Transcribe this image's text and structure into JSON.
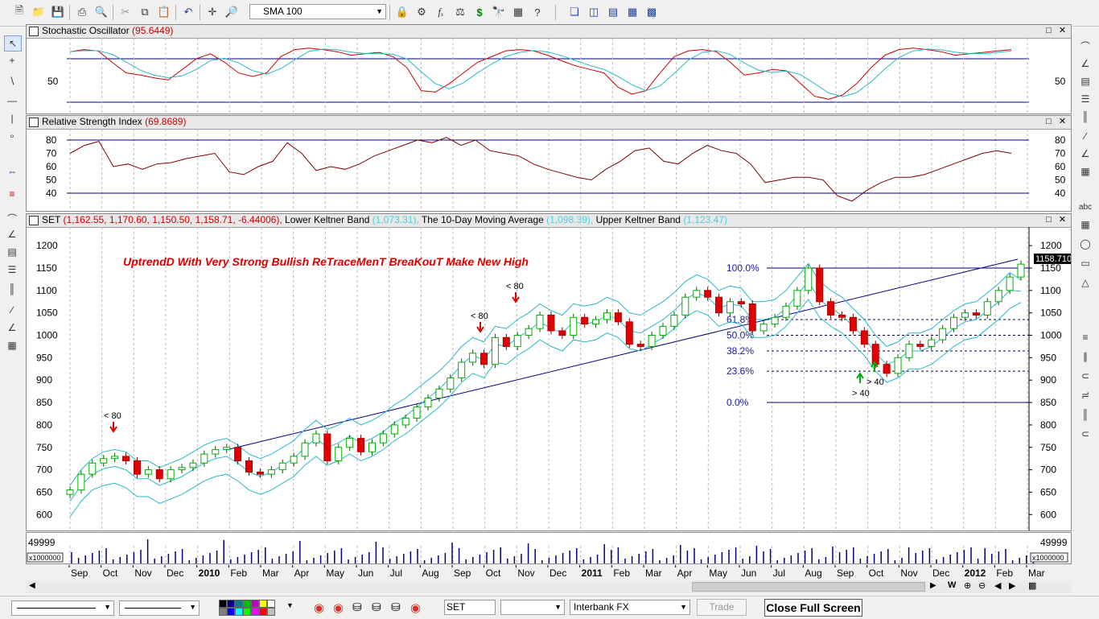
{
  "toolbar": {
    "indicator_select": "SMA 100"
  },
  "stochastic": {
    "name": "Stochastic Oscillator",
    "value": "(95.6449)",
    "level_label": "50"
  },
  "rsi": {
    "name": "Relative Strength Index",
    "value": "(69.8689)",
    "ticks": [
      "80",
      "70",
      "60",
      "50",
      "40"
    ]
  },
  "price": {
    "title_symbol": "SET",
    "title_ohlc": "(1,162.55, 1,170.60, 1,150.50, 1,158.71, -6.44006),",
    "lower_keltner_label": "Lower Keltner Band",
    "lower_keltner_value": "(1,073.31),",
    "ma_label": "The 10-Day Moving Average",
    "ma_value": "(1,098.39),",
    "upper_keltner_label": "Upper Keltner Band",
    "upper_keltner_value": "(1,123.47)",
    "annotation": "UptrendD With Very Strong Bullish ReTraceMenT BreaKouT Make New High",
    "last_price": "1158.710",
    "y_ticks": [
      "1200",
      "1150",
      "1100",
      "1050",
      "1000",
      "950",
      "900",
      "850",
      "800",
      "750",
      "700",
      "650",
      "600"
    ],
    "fib_levels": [
      "100.0%",
      "61.8%",
      "50.0%",
      "38.2%",
      "23.6%",
      "0.0%"
    ],
    "signal_labels": [
      "< 80",
      "< 80",
      "< 80",
      "> 40",
      "> 40"
    ]
  },
  "volume": {
    "max_label": "49999",
    "scale_label": "x1000000"
  },
  "x_axis": {
    "labels": [
      "Sep",
      "Oct",
      "Nov",
      "Dec",
      "2010",
      "Feb",
      "Mar",
      "Apr",
      "May",
      "Jun",
      "Jul",
      "Aug",
      "Sep",
      "Oct",
      "Nov",
      "Dec",
      "2011",
      "Feb",
      "Mar",
      "Apr",
      "May",
      "Jun",
      "Jul",
      "Aug",
      "Sep",
      "Oct",
      "Nov",
      "Dec",
      "2012",
      "Feb",
      "Mar"
    ]
  },
  "bottom": {
    "symbol": "SET",
    "broker": "Interbank FX",
    "trade_label": "Trade",
    "close_full_screen": "Close Full Screen"
  },
  "chart_data": {
    "type": "candlestick",
    "title": "UptrendD With Very Strong Bullish ReTraceMenT BreaKouT Make New High",
    "ylim": [
      570,
      1220
    ],
    "x_range": [
      "2009-09",
      "2012-03"
    ],
    "y_ticks": [
      1200,
      1150,
      1100,
      1050,
      1000,
      950,
      900,
      850,
      800,
      750,
      700,
      650,
      600
    ],
    "fibonacci": [
      {
        "level": "100.0%",
        "price": 1150
      },
      {
        "level": "61.8%",
        "price": 1035
      },
      {
        "level": "50.0%",
        "price": 1000
      },
      {
        "level": "38.2%",
        "price": 965
      },
      {
        "level": "23.6%",
        "price": 920
      },
      {
        "level": "0.0%",
        "price": 850
      }
    ],
    "closes": [
      655,
      690,
      715,
      725,
      730,
      720,
      690,
      700,
      680,
      700,
      705,
      715,
      735,
      745,
      750,
      720,
      695,
      690,
      700,
      715,
      730,
      760,
      780,
      720,
      750,
      770,
      740,
      760,
      780,
      800,
      815,
      840,
      860,
      880,
      905,
      940,
      960,
      935,
      995,
      975,
      1000,
      1015,
      1045,
      1010,
      1000,
      1040,
      1025,
      1035,
      1050,
      1030,
      980,
      975,
      1000,
      1020,
      1045,
      1085,
      1100,
      1085,
      1050,
      1075,
      1070,
      1010,
      1025,
      1040,
      1065,
      1100,
      1150,
      1075,
      1045,
      1040,
      1010,
      980,
      935,
      915,
      950,
      980,
      975,
      990,
      1015,
      1040,
      1050,
      1045,
      1075,
      1100,
      1130,
      1158.71
    ],
    "upper_keltner": [
      665,
      700,
      725,
      740,
      745,
      740,
      720,
      720,
      705,
      715,
      725,
      740,
      755,
      765,
      770,
      755,
      735,
      725,
      735,
      750,
      765,
      790,
      810,
      790,
      800,
      815,
      800,
      810,
      825,
      845,
      860,
      880,
      900,
      920,
      945,
      975,
      995,
      985,
      1020,
      1015,
      1035,
      1050,
      1070,
      1055,
      1045,
      1070,
      1065,
      1070,
      1085,
      1075,
      1050,
      1045,
      1060,
      1075,
      1095,
      1120,
      1135,
      1125,
      1100,
      1110,
      1105,
      1075,
      1075,
      1080,
      1100,
      1130,
      1160,
      1120,
      1100,
      1085,
      1060,
      1035,
      1000,
      975,
      985,
      1005,
      1005,
      1015,
      1035,
      1055,
      1070,
      1075,
      1095,
      1115,
      1140,
      1123.47
    ],
    "lower_keltner": [
      595,
      630,
      655,
      665,
      670,
      660,
      640,
      640,
      625,
      635,
      645,
      660,
      675,
      685,
      690,
      675,
      655,
      645,
      655,
      670,
      685,
      710,
      730,
      710,
      720,
      735,
      720,
      730,
      745,
      765,
      780,
      800,
      820,
      840,
      865,
      895,
      915,
      905,
      940,
      935,
      955,
      970,
      990,
      975,
      965,
      990,
      985,
      990,
      1005,
      995,
      970,
      965,
      980,
      995,
      1015,
      1040,
      1055,
      1045,
      1020,
      1030,
      1025,
      995,
      995,
      1000,
      1020,
      1050,
      1080,
      1040,
      1020,
      1005,
      980,
      955,
      920,
      895,
      905,
      925,
      925,
      935,
      955,
      975,
      990,
      995,
      1015,
      1035,
      1060,
      1073.31
    ]
  }
}
